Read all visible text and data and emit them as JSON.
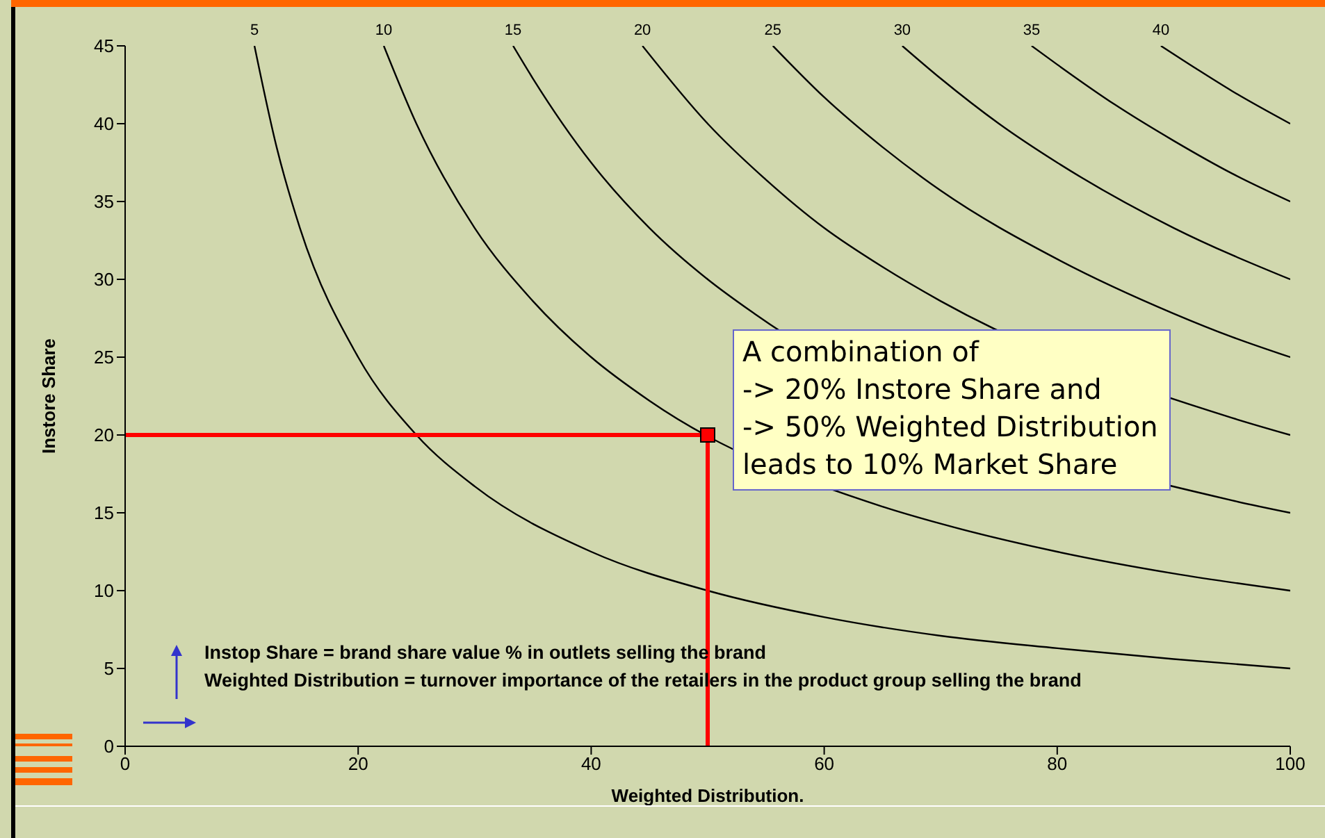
{
  "chart_data": {
    "type": "line",
    "xlabel": "Weighted Distribution.",
    "ylabel": "Instore Share",
    "xlim": [
      0,
      100
    ],
    "xticks": [
      0,
      20,
      40,
      60,
      80,
      100
    ],
    "ylim": [
      0,
      45
    ],
    "yticks": [
      0,
      5,
      10,
      15,
      20,
      25,
      30,
      35,
      40,
      45
    ],
    "grid": false,
    "marker": "none",
    "line_style": "solid",
    "series": [
      {
        "name": "5",
        "color": "#000000",
        "x": [
          11.1,
          13,
          15,
          20,
          25,
          30,
          40,
          50,
          60,
          70,
          80,
          90,
          100
        ],
        "values": [
          45,
          38.5,
          33.3,
          25,
          20,
          16.7,
          12.5,
          10,
          8.3,
          7.1,
          6.3,
          5.6,
          5
        ]
      },
      {
        "name": "10",
        "color": "#000000",
        "x": [
          22.2,
          25,
          30,
          35,
          40,
          45,
          65,
          70,
          80,
          90,
          100
        ],
        "values": [
          45,
          40,
          33.3,
          28.6,
          25,
          22.2,
          15.4,
          14.3,
          12.5,
          11.1,
          10
        ]
      },
      {
        "name": "15",
        "color": "#000000",
        "x": [
          33.3,
          35,
          40,
          45,
          50,
          54,
          95,
          100
        ],
        "values": [
          45,
          42.9,
          37.5,
          33.3,
          30,
          27.8,
          15.8,
          15
        ]
      },
      {
        "name": "20",
        "color": "#000000",
        "x": [
          44.4,
          50,
          55,
          60,
          65,
          70,
          95,
          100
        ],
        "values": [
          45,
          40,
          36.4,
          33.3,
          30.8,
          28.6,
          21.1,
          20
        ]
      },
      {
        "name": "25",
        "color": "#000000",
        "x": [
          55.6,
          60,
          65,
          70,
          80,
          90,
          95,
          100
        ],
        "values": [
          45,
          41.7,
          38.5,
          35.7,
          31.3,
          27.8,
          26.3,
          25
        ]
      },
      {
        "name": "30",
        "color": "#000000",
        "x": [
          66.7,
          70,
          75,
          80,
          90,
          100
        ],
        "values": [
          45,
          42.9,
          40,
          37.5,
          33.3,
          30
        ]
      },
      {
        "name": "35",
        "color": "#000000",
        "x": [
          77.8,
          80,
          85,
          90,
          95,
          100
        ],
        "values": [
          45,
          43.8,
          41.2,
          38.9,
          36.8,
          35
        ]
      },
      {
        "name": "40",
        "color": "#000000",
        "x": [
          88.9,
          92,
          95,
          100
        ],
        "values": [
          45,
          43.5,
          42.1,
          40
        ]
      },
      {
        "color": "#ff0000",
        "x": [
          0,
          50,
          50
        ],
        "values": [
          20,
          20,
          0
        ]
      },
      {
        "type": "scatter",
        "color": "#ff0000",
        "marker": "square",
        "x": [
          50
        ],
        "values": [
          20
        ]
      }
    ],
    "annotations": [
      {
        "text": "A combination of\n-> 20% Instore Share and\n-> 50% Weighted Distribution\nleads to 10% Market Share",
        "x": 50,
        "y": 20
      },
      "Instop Share = brand share value % in outlets selling the brand",
      "Weighted Distribution = turnover importance of the retailers in the product group selling the brand"
    ]
  }
}
